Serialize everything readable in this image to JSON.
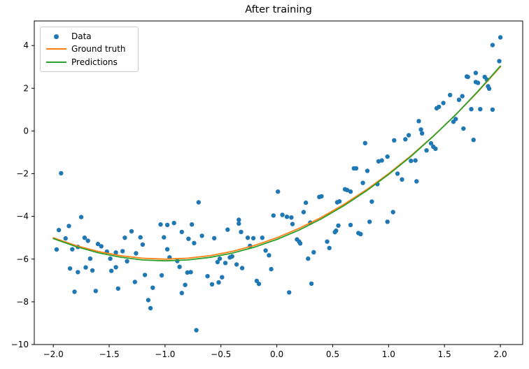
{
  "figure": {
    "title": "After training"
  },
  "chart_data": {
    "type": "scatter",
    "title": "After training",
    "xlabel": "",
    "ylabel": "",
    "xlim": [
      -2.17,
      2.2
    ],
    "ylim": [
      -10.0,
      5.15
    ],
    "grid": false,
    "legend": {
      "position": "upper left",
      "items": [
        "Data",
        "Ground truth",
        "Predictions"
      ]
    },
    "colors": {
      "data": "#1f77b4",
      "ground_truth": "#ff7f0e",
      "predictions": "#2ca02c",
      "frame": "#000000"
    },
    "x_ticks": [
      {
        "v": -2.0,
        "label": "−2.0"
      },
      {
        "v": -1.5,
        "label": "−1.5"
      },
      {
        "v": -1.0,
        "label": "−1.0"
      },
      {
        "v": -0.5,
        "label": "−0.5"
      },
      {
        "v": 0.0,
        "label": "0.0"
      },
      {
        "v": 0.5,
        "label": "0.5"
      },
      {
        "v": 1.0,
        "label": "1.0"
      },
      {
        "v": 1.5,
        "label": "1.5"
      },
      {
        "v": 2.0,
        "label": "2.0"
      }
    ],
    "y_ticks": [
      {
        "v": -10,
        "label": "−10"
      },
      {
        "v": -8,
        "label": "−8"
      },
      {
        "v": -6,
        "label": "−6"
      },
      {
        "v": -4,
        "label": "−4"
      },
      {
        "v": -2,
        "label": "−2"
      },
      {
        "v": 0,
        "label": "0"
      },
      {
        "v": 2,
        "label": "2"
      },
      {
        "v": 4,
        "label": "4"
      }
    ],
    "series": [
      {
        "name": "Data",
        "type": "scatter",
        "color": "#1f77b4",
        "points": [
          [
            -1.97,
            -5.55
          ],
          [
            -1.95,
            -4.64
          ],
          [
            -1.93,
            -1.98
          ],
          [
            -1.89,
            -5.03
          ],
          [
            -1.86,
            -4.45
          ],
          [
            -1.85,
            -6.44
          ],
          [
            -1.83,
            -5.54
          ],
          [
            -1.81,
            -7.53
          ],
          [
            -1.78,
            -5.43
          ],
          [
            -1.78,
            -6.61
          ],
          [
            -1.75,
            -4.03
          ],
          [
            -1.72,
            -5.0
          ],
          [
            -1.71,
            -6.39
          ],
          [
            -1.69,
            -5.14
          ],
          [
            -1.67,
            -5.98
          ],
          [
            -1.65,
            -6.53
          ],
          [
            -1.62,
            -7.49
          ],
          [
            -1.6,
            -5.29
          ],
          [
            -1.57,
            -5.4
          ],
          [
            -1.52,
            -5.65
          ],
          [
            -1.49,
            -5.98
          ],
          [
            -1.48,
            -6.55
          ],
          [
            -1.44,
            -5.69
          ],
          [
            -1.44,
            -6.38
          ],
          [
            -1.42,
            -7.38
          ],
          [
            -1.38,
            -5.63
          ],
          [
            -1.36,
            -5.0
          ],
          [
            -1.34,
            -6.1
          ],
          [
            -1.3,
            -4.7
          ],
          [
            -1.27,
            -7.07
          ],
          [
            -1.26,
            -5.73
          ],
          [
            -1.22,
            -4.98
          ],
          [
            -1.2,
            -5.32
          ],
          [
            -1.18,
            -6.74
          ],
          [
            -1.15,
            -7.92
          ],
          [
            -1.13,
            -8.3
          ],
          [
            -1.11,
            -7.34
          ],
          [
            -1.04,
            -4.38
          ],
          [
            -1.03,
            -6.76
          ],
          [
            -1.01,
            -4.98
          ],
          [
            -0.98,
            -4.4
          ],
          [
            -0.98,
            -5.54
          ],
          [
            -0.96,
            -5.92
          ],
          [
            -0.92,
            -4.31
          ],
          [
            -0.89,
            -6.09
          ],
          [
            -0.87,
            -6.36
          ],
          [
            -0.85,
            -4.73
          ],
          [
            -0.85,
            -7.59
          ],
          [
            -0.82,
            -7.21
          ],
          [
            -0.8,
            -6.63
          ],
          [
            -0.79,
            -5.05
          ],
          [
            -0.77,
            -6.61
          ],
          [
            -0.76,
            -4.38
          ],
          [
            -0.74,
            -5.25
          ],
          [
            -0.72,
            -9.33
          ],
          [
            -0.7,
            -3.34
          ],
          [
            -0.67,
            -4.91
          ],
          [
            -0.62,
            -6.8
          ],
          [
            -0.58,
            -7.18
          ],
          [
            -0.56,
            -5.02
          ],
          [
            -0.53,
            -6.14
          ],
          [
            -0.52,
            -7.09
          ],
          [
            -0.51,
            -5.98
          ],
          [
            -0.49,
            -6.85
          ],
          [
            -0.46,
            -6.18
          ],
          [
            -0.44,
            -4.62
          ],
          [
            -0.42,
            -5.92
          ],
          [
            -0.4,
            -5.87
          ],
          [
            -0.36,
            -6.25
          ],
          [
            -0.34,
            -4.16
          ],
          [
            -0.34,
            -4.34
          ],
          [
            -0.32,
            -4.73
          ],
          [
            -0.31,
            -6.42
          ],
          [
            -0.26,
            -5.0
          ],
          [
            -0.24,
            -5.38
          ],
          [
            -0.21,
            -5.02
          ],
          [
            -0.18,
            -7.02
          ],
          [
            -0.16,
            -7.16
          ],
          [
            -0.13,
            -5.0
          ],
          [
            -0.1,
            -5.6
          ],
          [
            -0.07,
            -5.82
          ],
          [
            -0.05,
            -6.47
          ],
          [
            -0.03,
            -3.96
          ],
          [
            0.01,
            -2.84
          ],
          [
            0.05,
            -3.93
          ],
          [
            0.09,
            -4.02
          ],
          [
            0.11,
            -7.56
          ],
          [
            0.13,
            -4.05
          ],
          [
            0.14,
            -4.36
          ],
          [
            0.18,
            -5.08
          ],
          [
            0.2,
            -5.18
          ],
          [
            0.21,
            -5.27
          ],
          [
            0.24,
            -3.8
          ],
          [
            0.26,
            -3.36
          ],
          [
            0.28,
            -5.98
          ],
          [
            0.3,
            -4.29
          ],
          [
            0.31,
            -7.15
          ],
          [
            0.33,
            -5.68
          ],
          [
            0.38,
            -3.09
          ],
          [
            0.4,
            -3.06
          ],
          [
            0.45,
            -5.18
          ],
          [
            0.47,
            -5.48
          ],
          [
            0.52,
            -4.74
          ],
          [
            0.53,
            -4.67
          ],
          [
            0.54,
            -3.34
          ],
          [
            0.55,
            -4.43
          ],
          [
            0.56,
            -3.3
          ],
          [
            0.61,
            -2.73
          ],
          [
            0.63,
            -2.77
          ],
          [
            0.66,
            -2.84
          ],
          [
            0.66,
            -4.4
          ],
          [
            0.69,
            -1.75
          ],
          [
            0.71,
            -1.75
          ],
          [
            0.73,
            -4.78
          ],
          [
            0.75,
            -4.83
          ],
          [
            0.77,
            -2.43
          ],
          [
            0.79,
            -0.57
          ],
          [
            0.81,
            -1.87
          ],
          [
            0.83,
            -4.25
          ],
          [
            0.85,
            -3.31
          ],
          [
            0.9,
            -2.49
          ],
          [
            0.91,
            -1.42
          ],
          [
            0.94,
            -1.38
          ],
          [
            0.99,
            -1.2
          ],
          [
            0.99,
            -4.25
          ],
          [
            1.04,
            -3.8
          ],
          [
            1.05,
            -0.44
          ],
          [
            1.08,
            -2.0
          ],
          [
            1.12,
            -2.27
          ],
          [
            1.15,
            -0.39
          ],
          [
            1.18,
            -0.2
          ],
          [
            1.2,
            -1.4
          ],
          [
            1.24,
            -1.38
          ],
          [
            1.25,
            -2.36
          ],
          [
            1.27,
            0.46
          ],
          [
            1.29,
            0.07
          ],
          [
            1.3,
            -0.11
          ],
          [
            1.34,
            -0.91
          ],
          [
            1.38,
            -0.58
          ],
          [
            1.4,
            -0.74
          ],
          [
            1.42,
            -0.83
          ],
          [
            1.43,
            1.06
          ],
          [
            1.45,
            1.13
          ],
          [
            1.49,
            1.31
          ],
          [
            1.55,
            1.68
          ],
          [
            1.58,
            0.43
          ],
          [
            1.6,
            0.56
          ],
          [
            1.63,
            1.46
          ],
          [
            1.66,
            1.63
          ],
          [
            1.67,
            0.11
          ],
          [
            1.7,
            2.55
          ],
          [
            1.71,
            2.53
          ],
          [
            1.74,
            1.02
          ],
          [
            1.76,
            -0.42
          ],
          [
            1.78,
            2.72
          ],
          [
            1.78,
            2.29
          ],
          [
            1.8,
            2.25
          ],
          [
            1.82,
            1.02
          ],
          [
            1.86,
            2.53
          ],
          [
            1.88,
            2.4
          ],
          [
            1.89,
            2.09
          ],
          [
            1.9,
            1.98
          ],
          [
            1.93,
            1.0
          ],
          [
            1.93,
            4.02
          ],
          [
            1.99,
            3.27
          ],
          [
            2.0,
            4.38
          ]
        ]
      },
      {
        "name": "Ground truth",
        "type": "line",
        "color": "#ff7f0e",
        "formula": "y = x^2 + 2x - 5",
        "points": [
          [
            -2.0,
            -5.0
          ],
          [
            -1.8,
            -5.36
          ],
          [
            -1.6,
            -5.64
          ],
          [
            -1.4,
            -5.84
          ],
          [
            -1.2,
            -5.96
          ],
          [
            -1.0,
            -6.0
          ],
          [
            -0.8,
            -5.96
          ],
          [
            -0.6,
            -5.84
          ],
          [
            -0.4,
            -5.64
          ],
          [
            -0.2,
            -5.36
          ],
          [
            0.0,
            -5.0
          ],
          [
            0.2,
            -4.56
          ],
          [
            0.4,
            -4.04
          ],
          [
            0.6,
            -3.44
          ],
          [
            0.8,
            -2.76
          ],
          [
            1.0,
            -2.0
          ],
          [
            1.2,
            -1.16
          ],
          [
            1.4,
            -0.24
          ],
          [
            1.6,
            0.76
          ],
          [
            1.8,
            1.84
          ],
          [
            2.0,
            3.0
          ]
        ]
      },
      {
        "name": "Predictions",
        "type": "line",
        "color": "#2ca02c",
        "points": [
          [
            -2.0,
            -5.04
          ],
          [
            -1.8,
            -5.41
          ],
          [
            -1.6,
            -5.7
          ],
          [
            -1.4,
            -5.91
          ],
          [
            -1.2,
            -6.04
          ],
          [
            -1.0,
            -6.08
          ],
          [
            -0.8,
            -6.04
          ],
          [
            -0.6,
            -5.92
          ],
          [
            -0.4,
            -5.72
          ],
          [
            -0.2,
            -5.44
          ],
          [
            0.0,
            -5.08
          ],
          [
            0.2,
            -4.64
          ],
          [
            0.4,
            -4.11
          ],
          [
            0.6,
            -3.5
          ],
          [
            0.8,
            -2.81
          ],
          [
            1.0,
            -2.04
          ],
          [
            1.2,
            -1.19
          ],
          [
            1.4,
            -0.25
          ],
          [
            1.6,
            0.76
          ],
          [
            1.8,
            1.86
          ],
          [
            2.0,
            3.04
          ]
        ]
      }
    ]
  }
}
